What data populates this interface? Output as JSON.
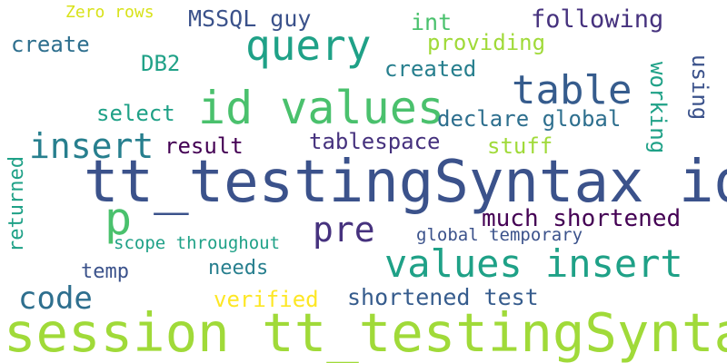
{
  "words": [
    {
      "text": "tt_testingSyntax id",
      "color": "#3b528b"
    },
    {
      "text": "session tt_testingSyntax",
      "color": "#a0da39"
    },
    {
      "text": "id values",
      "color": "#4ac16d"
    },
    {
      "text": "values insert",
      "color": "#1fa187"
    },
    {
      "text": "query",
      "color": "#1fa187"
    },
    {
      "text": "table",
      "color": "#365c8d"
    },
    {
      "text": "insert",
      "color": "#277f8e"
    },
    {
      "text": "p",
      "color": "#4ac16d"
    },
    {
      "text": "pre",
      "color": "#46327e"
    },
    {
      "text": "code",
      "color": "#2e6f8e"
    },
    {
      "text": "much shortened",
      "color": "#440154"
    },
    {
      "text": "shortened test",
      "color": "#365c8d"
    },
    {
      "text": "following",
      "color": "#46327e"
    },
    {
      "text": "MSSQL guy",
      "color": "#3b528b"
    },
    {
      "text": "int",
      "color": "#4ac16d"
    },
    {
      "text": "providing",
      "color": "#a0da39"
    },
    {
      "text": "create",
      "color": "#2e6f8e"
    },
    {
      "text": "DB2",
      "color": "#1fa187"
    },
    {
      "text": "created",
      "color": "#277f8e"
    },
    {
      "text": "select",
      "color": "#1fa187"
    },
    {
      "text": "declare global",
      "color": "#2e6f8e"
    },
    {
      "text": "result",
      "color": "#440154"
    },
    {
      "text": "tablespace",
      "color": "#46327e"
    },
    {
      "text": "stuff",
      "color": "#a0da39"
    },
    {
      "text": "scope throughout",
      "color": "#1fa187"
    },
    {
      "text": "global temporary",
      "color": "#3b528b"
    },
    {
      "text": "temp",
      "color": "#3b528b"
    },
    {
      "text": "needs",
      "color": "#277f8e"
    },
    {
      "text": "verified",
      "color": "#fde725"
    },
    {
      "text": "Zero rows",
      "color": "#d8e219"
    },
    {
      "text": "working",
      "color": "#1fa187"
    },
    {
      "text": "using",
      "color": "#3b528b"
    },
    {
      "text": "returned",
      "color": "#1fa187"
    }
  ]
}
